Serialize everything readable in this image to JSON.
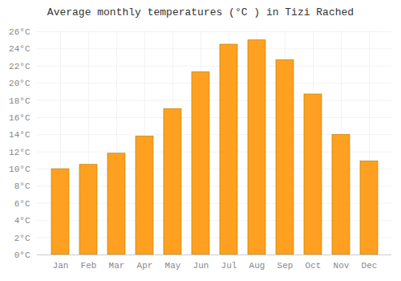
{
  "chart_data": {
    "type": "bar",
    "title": "Average monthly temperatures (°C ) in Tizi Rached",
    "categories": [
      "Jan",
      "Feb",
      "Mar",
      "Apr",
      "May",
      "Jun",
      "Jul",
      "Aug",
      "Sep",
      "Oct",
      "Nov",
      "Dec"
    ],
    "values": [
      10.0,
      10.5,
      11.8,
      13.8,
      17.0,
      21.3,
      24.5,
      25.0,
      22.7,
      18.7,
      14.0,
      10.9
    ],
    "color": "#FFA020",
    "ylim": [
      0,
      26
    ],
    "yticks": [
      {
        "value": 0,
        "label": "0°C"
      },
      {
        "value": 2,
        "label": "2°C"
      },
      {
        "value": 4,
        "label": "4°C"
      },
      {
        "value": 6,
        "label": "6°C"
      },
      {
        "value": 8,
        "label": "8°C"
      },
      {
        "value": 10,
        "label": "10°C"
      },
      {
        "value": 12,
        "label": "12°C"
      },
      {
        "value": 14,
        "label": "14°C"
      },
      {
        "value": 16,
        "label": "16°C"
      },
      {
        "value": 18,
        "label": "18°C"
      },
      {
        "value": 20,
        "label": "20°C"
      },
      {
        "value": 22,
        "label": "22°C"
      },
      {
        "value": 24,
        "label": "24°C"
      },
      {
        "value": 26,
        "label": "26°C"
      }
    ],
    "grid": true
  }
}
